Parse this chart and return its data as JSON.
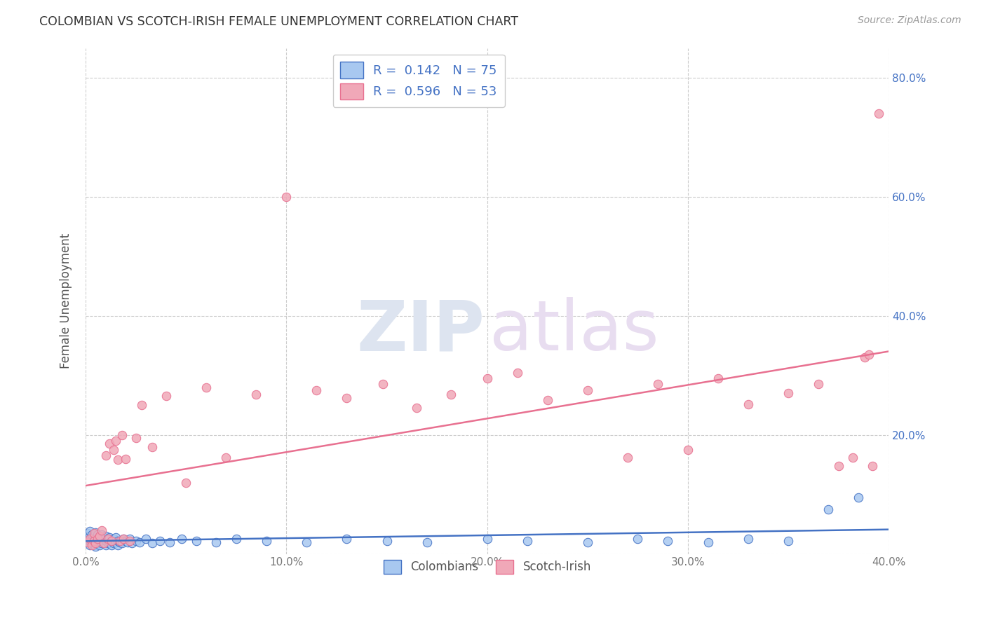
{
  "title": "COLOMBIAN VS SCOTCH-IRISH FEMALE UNEMPLOYMENT CORRELATION CHART",
  "source": "Source: ZipAtlas.com",
  "ylabel": "Female Unemployment",
  "xlim": [
    0.0,
    0.4
  ],
  "ylim": [
    0.0,
    0.85
  ],
  "xticks": [
    0.0,
    0.1,
    0.2,
    0.3,
    0.4
  ],
  "xticklabels": [
    "0.0%",
    "10.0%",
    "20.0%",
    "30.0%",
    "40.0%"
  ],
  "yticks": [
    0.0,
    0.2,
    0.4,
    0.6,
    0.8
  ],
  "yticklabels": [
    "",
    "20.0%",
    "40.0%",
    "60.0%",
    "80.0%"
  ],
  "grid_color": "#cccccc",
  "background_color": "#ffffff",
  "colombian_color": "#a8c8f0",
  "scotchirish_color": "#f0a8b8",
  "colombian_line_color": "#4472c4",
  "scotchirish_line_color": "#e87090",
  "R_colombian": 0.142,
  "N_colombian": 75,
  "R_scotchirish": 0.596,
  "N_scotchirish": 53,
  "colombian_x": [
    0.001,
    0.001,
    0.001,
    0.002,
    0.002,
    0.002,
    0.002,
    0.003,
    0.003,
    0.003,
    0.004,
    0.004,
    0.004,
    0.005,
    0.005,
    0.005,
    0.005,
    0.006,
    0.006,
    0.006,
    0.007,
    0.007,
    0.007,
    0.008,
    0.008,
    0.008,
    0.009,
    0.009,
    0.01,
    0.01,
    0.01,
    0.011,
    0.011,
    0.012,
    0.012,
    0.013,
    0.013,
    0.014,
    0.014,
    0.015,
    0.015,
    0.016,
    0.016,
    0.017,
    0.018,
    0.019,
    0.02,
    0.021,
    0.022,
    0.023,
    0.025,
    0.027,
    0.03,
    0.033,
    0.037,
    0.042,
    0.048,
    0.055,
    0.065,
    0.075,
    0.09,
    0.11,
    0.13,
    0.15,
    0.17,
    0.2,
    0.22,
    0.25,
    0.275,
    0.29,
    0.31,
    0.33,
    0.35,
    0.37,
    0.385
  ],
  "colombian_y": [
    0.02,
    0.028,
    0.035,
    0.015,
    0.022,
    0.03,
    0.038,
    0.018,
    0.025,
    0.032,
    0.015,
    0.022,
    0.03,
    0.012,
    0.02,
    0.028,
    0.036,
    0.018,
    0.025,
    0.032,
    0.015,
    0.022,
    0.03,
    0.018,
    0.025,
    0.033,
    0.02,
    0.028,
    0.015,
    0.022,
    0.03,
    0.018,
    0.025,
    0.02,
    0.028,
    0.015,
    0.022,
    0.018,
    0.025,
    0.02,
    0.028,
    0.015,
    0.022,
    0.02,
    0.018,
    0.025,
    0.022,
    0.02,
    0.025,
    0.018,
    0.022,
    0.02,
    0.025,
    0.018,
    0.022,
    0.02,
    0.025,
    0.022,
    0.02,
    0.025,
    0.022,
    0.02,
    0.025,
    0.022,
    0.02,
    0.025,
    0.022,
    0.02,
    0.025,
    0.022,
    0.02,
    0.025,
    0.022,
    0.075,
    0.095
  ],
  "scotchirish_x": [
    0.001,
    0.002,
    0.003,
    0.004,
    0.004,
    0.005,
    0.006,
    0.007,
    0.008,
    0.009,
    0.01,
    0.011,
    0.012,
    0.013,
    0.014,
    0.015,
    0.016,
    0.017,
    0.018,
    0.019,
    0.02,
    0.022,
    0.025,
    0.028,
    0.033,
    0.04,
    0.05,
    0.06,
    0.07,
    0.085,
    0.1,
    0.115,
    0.13,
    0.148,
    0.165,
    0.182,
    0.2,
    0.215,
    0.23,
    0.25,
    0.27,
    0.285,
    0.3,
    0.315,
    0.33,
    0.35,
    0.365,
    0.375,
    0.382,
    0.388,
    0.39,
    0.392,
    0.395
  ],
  "scotchirish_y": [
    0.02,
    0.025,
    0.015,
    0.022,
    0.035,
    0.018,
    0.025,
    0.03,
    0.04,
    0.018,
    0.165,
    0.025,
    0.185,
    0.022,
    0.175,
    0.19,
    0.158,
    0.022,
    0.2,
    0.025,
    0.16,
    0.022,
    0.195,
    0.25,
    0.18,
    0.265,
    0.12,
    0.28,
    0.162,
    0.268,
    0.6,
    0.275,
    0.262,
    0.285,
    0.245,
    0.268,
    0.295,
    0.305,
    0.258,
    0.275,
    0.162,
    0.285,
    0.175,
    0.295,
    0.252,
    0.27,
    0.285,
    0.148,
    0.162,
    0.33,
    0.335,
    0.148,
    0.74
  ]
}
